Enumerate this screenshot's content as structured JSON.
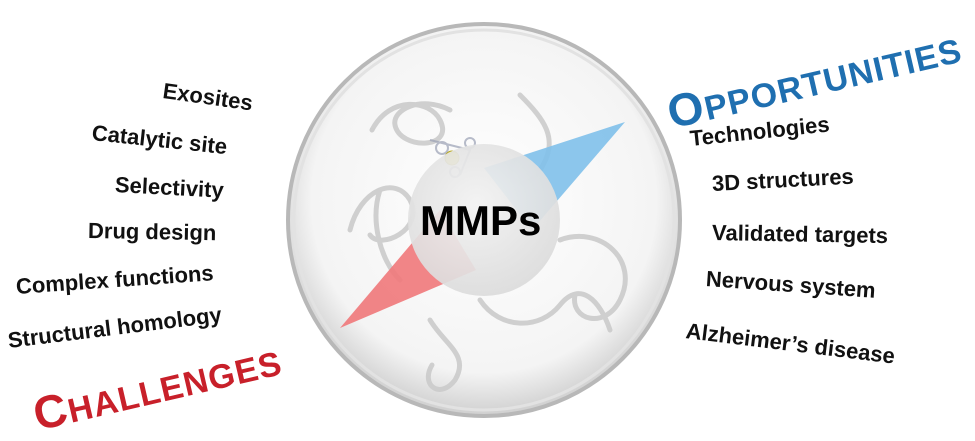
{
  "center": {
    "label": "MMPs"
  },
  "challenges": {
    "title_cap": "C",
    "title_rest": "HALLENGES",
    "items": [
      "Exosites",
      "Catalytic site",
      "Selectivity",
      "Drug design",
      "Complex functions",
      "Structural homology"
    ]
  },
  "opportunities": {
    "title_cap": "O",
    "title_rest": "PPORTUNITIES",
    "items": [
      "Technologies",
      "3D structures",
      "Validated targets",
      "Nervous system",
      "Alzheimer’s disease"
    ]
  },
  "colors": {
    "challenges": "#c8202a",
    "opportunities": "#1f6fb0",
    "red_wedge": "#f0787a",
    "blue_wedge": "#7fc0ea"
  }
}
